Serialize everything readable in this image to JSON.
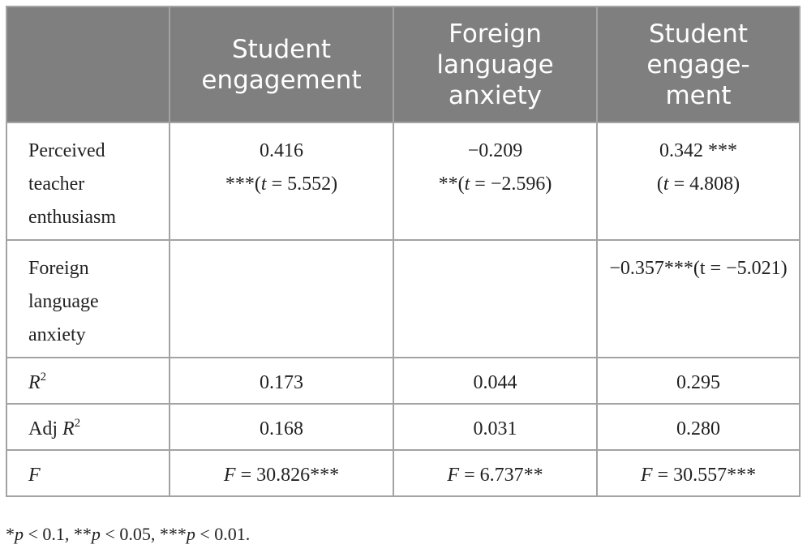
{
  "table": {
    "header": [
      [],
      [
        [
          {
            "text": "Student"
          }
        ],
        [
          {
            "text": "engagement"
          }
        ]
      ],
      [
        [
          {
            "text": "Foreign"
          }
        ],
        [
          {
            "text": "language"
          }
        ],
        [
          {
            "text": "anxiety"
          }
        ]
      ],
      [
        [
          {
            "text": "Student"
          }
        ],
        [
          {
            "text": "engage-"
          }
        ],
        [
          {
            "text": "ment"
          }
        ]
      ]
    ],
    "rows": [
      [
        [
          [
            {
              "text": "Perceived"
            }
          ],
          [
            {
              "text": "teacher"
            }
          ],
          [
            {
              "text": "enthusiasm"
            }
          ]
        ],
        [
          [
            {
              "text": "0.416"
            }
          ],
          [
            {
              "text": "***("
            },
            {
              "text": "t",
              "style": "italic"
            },
            {
              "text": " = 5.552)"
            }
          ]
        ],
        [
          [
            {
              "text": "−0.209"
            }
          ],
          [
            {
              "text": "**("
            },
            {
              "text": "t",
              "style": "italic"
            },
            {
              "text": " = −2.596)"
            }
          ]
        ],
        [
          [
            {
              "text": "0.342 ***"
            }
          ],
          [
            {
              "text": "("
            },
            {
              "text": "t",
              "style": "italic"
            },
            {
              "text": " = 4.808)"
            }
          ]
        ]
      ],
      [
        [
          [
            {
              "text": "Foreign"
            }
          ],
          [
            {
              "text": "language"
            }
          ],
          [
            {
              "text": "anxiety"
            }
          ]
        ],
        [],
        [],
        [
          [
            {
              "text": "−0.357***(t = −5.021)"
            }
          ]
        ]
      ],
      [
        [
          [
            {
              "text": "R",
              "style": "italic"
            },
            {
              "text": "2",
              "style": "sup"
            }
          ]
        ],
        [
          [
            {
              "text": "0.173"
            }
          ]
        ],
        [
          [
            {
              "text": "0.044"
            }
          ]
        ],
        [
          [
            {
              "text": "0.295"
            }
          ]
        ]
      ],
      [
        [
          [
            {
              "text": "Adj "
            },
            {
              "text": "R",
              "style": "italic"
            },
            {
              "text": "2",
              "style": "sup"
            }
          ]
        ],
        [
          [
            {
              "text": "0.168"
            }
          ]
        ],
        [
          [
            {
              "text": "0.031"
            }
          ]
        ],
        [
          [
            {
              "text": "0.280"
            }
          ]
        ]
      ],
      [
        [
          [
            {
              "text": "F",
              "style": "italic"
            }
          ]
        ],
        [
          [
            {
              "text": "F",
              "style": "italic"
            },
            {
              "text": " = 30.826***"
            }
          ]
        ],
        [
          [
            {
              "text": "F",
              "style": "italic"
            },
            {
              "text": " = 6.737**"
            }
          ]
        ],
        [
          [
            {
              "text": "F",
              "style": "italic"
            },
            {
              "text": " = 30.557***"
            }
          ]
        ]
      ]
    ],
    "footnote": [
      [
        {
          "text": "*"
        },
        {
          "text": "p",
          "style": "italic"
        },
        {
          "text": " < 0.1, **"
        },
        {
          "text": "p",
          "style": "italic"
        },
        {
          "text": " < 0.05, ***"
        },
        {
          "text": "p",
          "style": "italic"
        },
        {
          "text": " < 0.01."
        }
      ]
    ]
  }
}
